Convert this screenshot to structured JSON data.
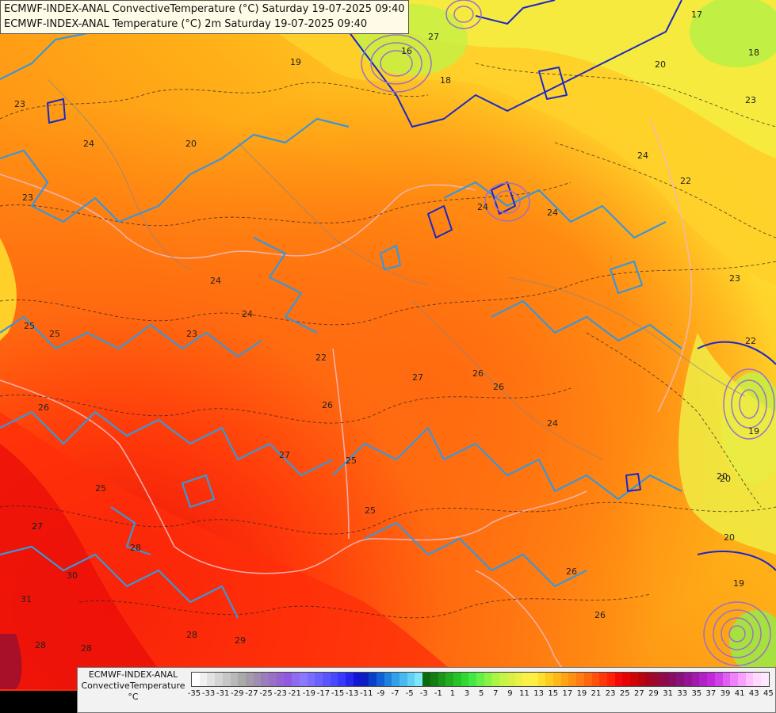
{
  "header": {
    "line1": "ECMWF-INDEX-ANAL ConvectiveTemperature (°C) Saturday 19-07-2025 09:40",
    "line2": "ECMWF-INDEX-ANAL Temperature (°C) 2m Saturday 19-07-2025 09:40"
  },
  "legend": {
    "model": "ECMWF-INDEX-ANAL",
    "field": "ConvectiveTemperature",
    "unit": "°C",
    "ticks": [
      "-35",
      "-33",
      "-31",
      "-29",
      "-27",
      "-25",
      "-23",
      "-21",
      "-19",
      "-17",
      "-15",
      "-13",
      "-11",
      "-9",
      "-7",
      "-5",
      "-3",
      "-1",
      "1",
      "3",
      "5",
      "7",
      "9",
      "11",
      "13",
      "15",
      "17",
      "19",
      "21",
      "23",
      "25",
      "27",
      "29",
      "31",
      "33",
      "35",
      "37",
      "39",
      "41",
      "43",
      "45"
    ],
    "colors": [
      "#ffffff",
      "#f0f0f0",
      "#e2e2e2",
      "#d4d4d4",
      "#c6c6c6",
      "#b8b8b8",
      "#aaaaaa",
      "#a59aa8",
      "#a08cb0",
      "#9c7dbb",
      "#9a6fc6",
      "#9662d2",
      "#905ae0",
      "#8f6bf0",
      "#8a78ff",
      "#7a6cff",
      "#6a60ff",
      "#5a54ff",
      "#4848ff",
      "#3838ff",
      "#2525ee",
      "#1414d8",
      "#0b1ec2",
      "#0a40c8",
      "#1060d8",
      "#2080e0",
      "#30a0e8",
      "#48b8f0",
      "#60d0f5",
      "#7fe5fa",
      "#0b6b0b",
      "#137f13",
      "#1a961a",
      "#20ad20",
      "#27c427",
      "#30d830",
      "#44e844",
      "#66ef44",
      "#88f344",
      "#a8f544",
      "#c4f444",
      "#d8f044",
      "#eaf044",
      "#f8f244",
      "#ffee44",
      "#ffde30",
      "#ffcc20",
      "#ffb818",
      "#ffa414",
      "#ff9012",
      "#ff7c10",
      "#ff660e",
      "#ff500c",
      "#ff380a",
      "#ff2008",
      "#f40808",
      "#e40404",
      "#d00404",
      "#bc0410",
      "#a80420",
      "#980a34",
      "#8c0a4c",
      "#860c64",
      "#8a107c",
      "#941494",
      "#a01aac",
      "#b020c4",
      "#c028d8",
      "#d040e8",
      "#e060f4",
      "#f080fb",
      "#f8a0fd",
      "#ffc0ff",
      "#ffd8ff",
      "#ffe8ff"
    ],
    "tick_positions_note": "ticks evenly spaced across colour bar"
  },
  "map_labels": [
    "23",
    "24",
    "23",
    "24",
    "25",
    "24",
    "23",
    "25",
    "26",
    "27",
    "26",
    "24",
    "26",
    "25",
    "27",
    "25",
    "26",
    "26",
    "25",
    "27",
    "27",
    "28",
    "30",
    "31",
    "28",
    "28",
    "29",
    "28",
    "24",
    "22",
    "23",
    "22",
    "20",
    "20",
    "19",
    "18",
    "17",
    "18",
    "19",
    "20",
    "20",
    "24",
    "23",
    "22",
    "26",
    "27",
    "16",
    "19",
    "20",
    "24"
  ],
  "colors": {
    "hot_red": "#f01008",
    "orange": "#ff8a12",
    "yellow": "#ffcc20",
    "light_yellow": "#f8f244",
    "green_yellow": "#c4f444",
    "contour_blue": "#3c96d6",
    "contour_dark_blue": "#1a28c8",
    "contour_purple": "#9c70c8",
    "border_pink": "#f0b8b8"
  }
}
